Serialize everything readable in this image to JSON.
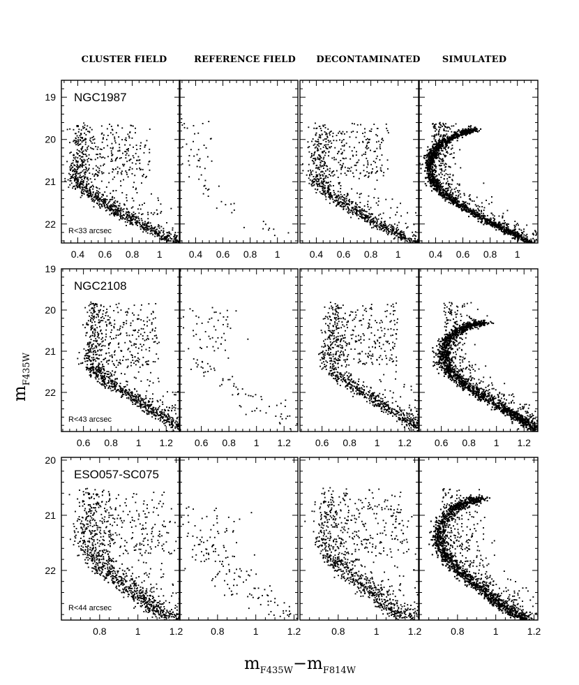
{
  "chart_data": {
    "type": "scatter",
    "column_titles": [
      "CLUSTER FIELD",
      "REFERENCE FIELD",
      "DECONTAMINATED",
      "SIMULATED"
    ],
    "xlabel": {
      "main": "m",
      "sub1": "F435W",
      "dash": "−",
      "main2": "m",
      "sub2": "F814W"
    },
    "ylabel": {
      "main": "m",
      "sub": "F435W"
    },
    "rows": [
      {
        "cluster": "NGC1987",
        "radius_label": "R<33 arcsec",
        "xlim": [
          0.28,
          1.15
        ],
        "ylim": [
          22.45,
          18.6
        ],
        "xticks": [
          0.4,
          0.6,
          0.8,
          1.0
        ],
        "xtick_labels": [
          "0.4",
          "0.6",
          "0.8",
          "1"
        ],
        "yticks": [
          19,
          20,
          21,
          22
        ],
        "ytick_labels": [
          "19",
          "20",
          "21",
          "22"
        ],
        "isochrone": {
          "x": [
            0.68,
            0.58,
            0.46,
            0.38,
            0.35,
            0.36,
            0.4,
            0.5,
            0.62,
            0.75,
            0.88,
            1.0,
            1.12
          ],
          "y": [
            19.75,
            19.85,
            20.05,
            20.3,
            20.6,
            20.9,
            21.15,
            21.4,
            21.65,
            21.9,
            22.1,
            22.3,
            22.5
          ]
        },
        "turnoff_y": 19.6,
        "ref_density": 0.05,
        "sim_thickness": 0.022
      },
      {
        "cluster": "NGC2108",
        "radius_label": "R<43 arcsec",
        "xlim": [
          0.44,
          1.3
        ],
        "ylim": [
          22.95,
          19.0
        ],
        "xticks": [
          0.6,
          0.8,
          1.0,
          1.2
        ],
        "xtick_labels": [
          "0.6",
          "0.8",
          "1",
          "1.2"
        ],
        "yticks": [
          19,
          20,
          21,
          22
        ],
        "ytick_labels": [
          "19",
          "20",
          "21",
          "22"
        ],
        "isochrone": {
          "x": [
            0.9,
            0.82,
            0.72,
            0.64,
            0.6,
            0.62,
            0.68,
            0.78,
            0.9,
            1.02,
            1.12,
            1.22,
            1.3
          ],
          "y": [
            20.3,
            20.35,
            20.5,
            20.75,
            21.05,
            21.35,
            21.6,
            21.85,
            22.1,
            22.35,
            22.55,
            22.75,
            22.95
          ]
        },
        "turnoff_y": 19.8,
        "ref_density": 0.09,
        "sim_thickness": 0.03
      },
      {
        "cluster": "ESO057-SC075",
        "radius_label": "R<44 arcsec",
        "xlim": [
          0.6,
          1.22
        ],
        "ylim": [
          22.9,
          19.95
        ],
        "xticks": [
          0.8,
          1.0,
          1.2
        ],
        "xtick_labels": [
          "0.8",
          "1",
          "1.2"
        ],
        "yticks": [
          20,
          21,
          22
        ],
        "ytick_labels": [
          "20",
          "21",
          "22"
        ],
        "isochrone": {
          "x": [
            0.92,
            0.85,
            0.77,
            0.71,
            0.7,
            0.72,
            0.78,
            0.85,
            0.92,
            0.99,
            1.05,
            1.12,
            1.2
          ],
          "y": [
            20.7,
            20.75,
            20.9,
            21.15,
            21.45,
            21.7,
            21.95,
            22.15,
            22.35,
            22.55,
            22.7,
            22.85,
            23.0
          ]
        },
        "turnoff_y": 20.5,
        "ref_density": 0.12,
        "sim_thickness": 0.02
      }
    ]
  }
}
